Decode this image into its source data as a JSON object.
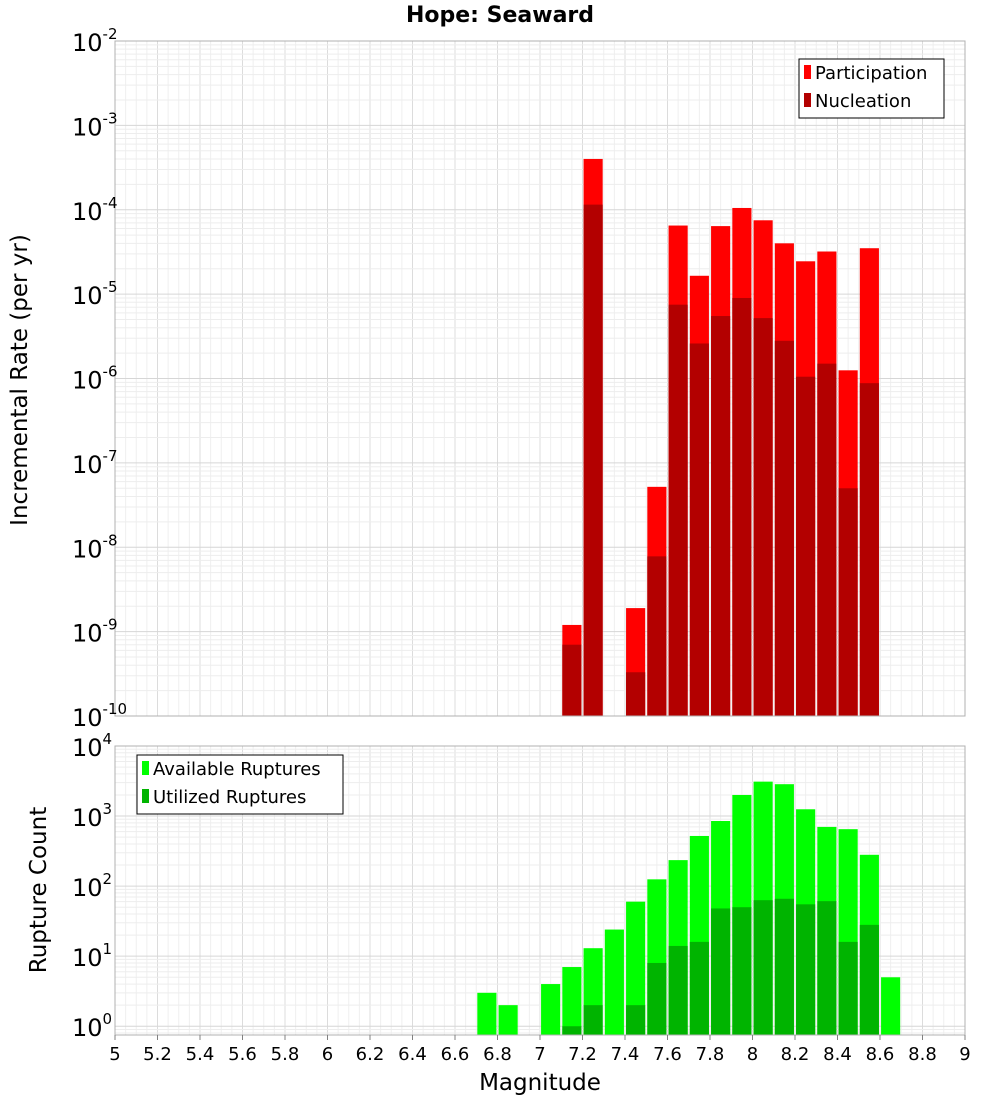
{
  "chart_data": [
    {
      "type": "bar",
      "title": "Hope: Seaward",
      "ylabel": "Incremental Rate (per yr)",
      "xlabel": "",
      "xlim": [
        5,
        9
      ],
      "ylim": [
        1e-10,
        0.01
      ],
      "yscale": "log",
      "grid": true,
      "legend_position": "top-right",
      "x": [
        7.15,
        7.25,
        7.45,
        7.55,
        7.65,
        7.75,
        7.85,
        7.95,
        8.05,
        8.15,
        8.25,
        8.35,
        8.45,
        8.55
      ],
      "series": [
        {
          "name": "Participation",
          "color": "#ff0000",
          "values": [
            1.2e-09,
            0.0004,
            1.9e-09,
            5.2e-08,
            6.5e-05,
            1.65e-05,
            6.4e-05,
            0.000105,
            7.5e-05,
            4e-05,
            2.45e-05,
            3.2e-05,
            1.25e-06,
            3.5e-05
          ]
        },
        {
          "name": "Nucleation",
          "color": "#b30000",
          "values": [
            7e-10,
            0.000115,
            3.3e-10,
            7.8e-09,
            7.5e-06,
            2.6e-06,
            5.5e-06,
            9e-06,
            5.2e-06,
            2.8e-06,
            1.05e-06,
            1.5e-06,
            5e-08,
            8.8e-07
          ]
        }
      ]
    },
    {
      "type": "bar",
      "title": "",
      "ylabel": "Rupture Count",
      "xlabel": "Magnitude",
      "xlim": [
        5,
        9
      ],
      "ylim": [
        0.75,
        10000
      ],
      "yscale": "log",
      "grid": true,
      "legend_position": "top-left",
      "x_ticks": [
        "5",
        "5.2",
        "5.4",
        "5.6",
        "5.8",
        "6",
        "6.2",
        "6.4",
        "6.6",
        "6.8",
        "7",
        "7.2",
        "7.4",
        "7.6",
        "7.8",
        "8",
        "8.2",
        "8.4",
        "8.6",
        "8.8",
        "9"
      ],
      "x": [
        6.75,
        6.85,
        7.05,
        7.15,
        7.25,
        7.35,
        7.45,
        7.55,
        7.65,
        7.75,
        7.85,
        7.95,
        8.05,
        8.15,
        8.25,
        8.35,
        8.45,
        8.55,
        8.65
      ],
      "series": [
        {
          "name": "Available Ruptures",
          "color": "#00ff00",
          "values": [
            3,
            2,
            4,
            7,
            13,
            24,
            60,
            125,
            235,
            520,
            850,
            2000,
            3100,
            2850,
            1250,
            700,
            650,
            280,
            5
          ]
        },
        {
          "name": "Utilized Ruptures",
          "color": "#00b400",
          "values": [
            0,
            0,
            0,
            1,
            2,
            0,
            2,
            8,
            14,
            16,
            48,
            50,
            63,
            66,
            55,
            61,
            16,
            28,
            0
          ]
        }
      ]
    }
  ]
}
